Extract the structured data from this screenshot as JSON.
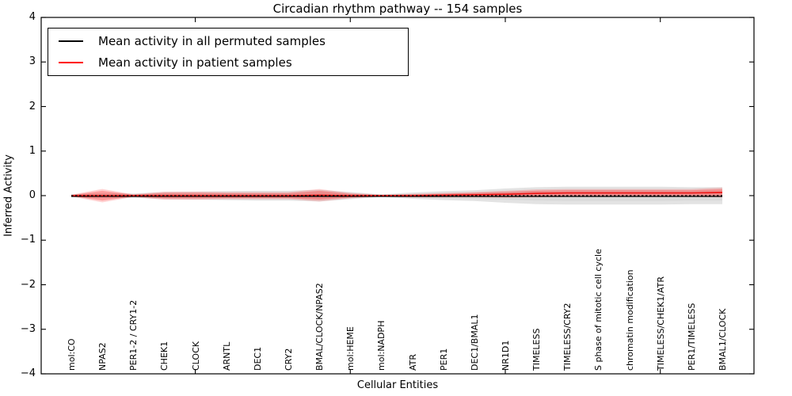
{
  "chart": {
    "title": "Circadian rhythm pathway -- 154 samples",
    "xlabel": "Cellular Entities",
    "ylabel": "Inferred Activity",
    "legend": [
      {
        "label": "Mean activity in all permuted samples",
        "color": "#000000"
      },
      {
        "label": "Mean activity in patient samples",
        "color": "#ff0000"
      }
    ],
    "ytick_labels": [
      "4",
      "3",
      "2",
      "1",
      "0",
      "−1",
      "−2",
      "−3",
      "−4"
    ],
    "colors": {
      "permuted_line": "#000000",
      "patient_line": "#ee1111",
      "permuted_band": "#c8c8c8",
      "patient_band": "#ff3333",
      "zero_line": "#000000",
      "axis": "#000000",
      "background": "#ffffff"
    }
  },
  "chart_data": {
    "type": "line",
    "title": "Circadian rhythm pathway -- 154 samples",
    "xlabel": "Cellular Entities",
    "ylabel": "Inferred Activity",
    "ylim": [
      -4,
      4
    ],
    "yticks": [
      4,
      3,
      2,
      1,
      0,
      -1,
      -2,
      -3,
      -4
    ],
    "grid": false,
    "legend_position": "upper left",
    "zero_reference_line": 0,
    "categories": [
      "mol:CO",
      "NPAS2",
      "PER1-2 / CRY1-2",
      "CHEK1",
      "CLOCK",
      "ARNTL",
      "DEC1",
      "CRY2",
      "BMAL/CLOCK/NPAS2",
      "mol:HEME",
      "mol:NADPH",
      "ATR",
      "PER1",
      "DEC1/BMAL1",
      "NR1D1",
      "TIMELESS",
      "TIMELESS/CRY2",
      "S phase of mitotic cell cycle",
      "chromatin modification",
      "TIMELESS/CHEK1/ATR",
      "PER1/TIMELESS",
      "BMAL1/CLOCK"
    ],
    "series": [
      {
        "name": "Mean activity in all permuted samples",
        "color": "#000000",
        "values": [
          0,
          0,
          0,
          0,
          0,
          0,
          0,
          0,
          0,
          0,
          0,
          0,
          0,
          0,
          0,
          0,
          0,
          0,
          0,
          0,
          0,
          0
        ],
        "std": [
          0.03,
          0.06,
          0.05,
          0.08,
          0.09,
          0.1,
          0.11,
          0.11,
          0.13,
          0.08,
          0.03,
          0.07,
          0.1,
          0.12,
          0.16,
          0.19,
          0.2,
          0.2,
          0.2,
          0.2,
          0.19,
          0.19
        ],
        "sem": [
          0.02,
          0.04,
          0.03,
          0.05,
          0.05,
          0.06,
          0.06,
          0.06,
          0.08,
          0.05,
          0.02,
          0.04,
          0.06,
          0.07,
          0.09,
          0.11,
          0.12,
          0.12,
          0.12,
          0.12,
          0.11,
          0.11
        ]
      },
      {
        "name": "Mean activity in patient samples",
        "color": "#ff0000",
        "values": [
          0,
          0,
          0,
          0,
          0,
          0,
          0,
          0,
          0.01,
          0,
          0,
          0,
          0.01,
          0.02,
          0.03,
          0.05,
          0.06,
          0.06,
          0.06,
          0.06,
          0.06,
          0.07
        ],
        "std": [
          0.02,
          0.15,
          0.03,
          0.09,
          0.09,
          0.08,
          0.08,
          0.08,
          0.14,
          0.06,
          0.02,
          0.04,
          0.05,
          0.06,
          0.08,
          0.09,
          0.09,
          0.09,
          0.09,
          0.09,
          0.09,
          0.11
        ],
        "sem": [
          0.012,
          0.11,
          0.02,
          0.06,
          0.06,
          0.055,
          0.055,
          0.055,
          0.1,
          0.04,
          0.012,
          0.025,
          0.03,
          0.04,
          0.05,
          0.06,
          0.06,
          0.06,
          0.06,
          0.06,
          0.06,
          0.075
        ]
      }
    ]
  }
}
